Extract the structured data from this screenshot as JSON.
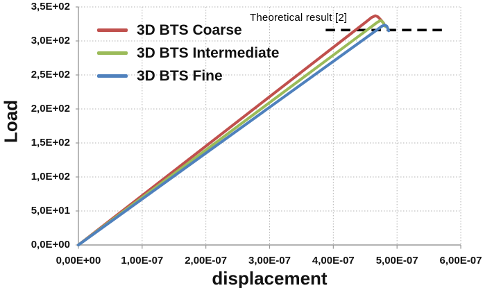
{
  "chart_data": {
    "type": "line",
    "title": "",
    "xlabel": "displacement",
    "ylabel": "Load",
    "xlim": [
      0,
      6e-07
    ],
    "ylim": [
      0,
      350
    ],
    "grid": true,
    "legend_position": "top-left",
    "x_tick_values": [
      0,
      1e-07,
      2e-07,
      3e-07,
      4e-07,
      5e-07,
      6e-07
    ],
    "x_tick_labels": [
      "0,00E+00",
      "1,00E-07",
      "2,00E-07",
      "3,00E-07",
      "4,00E-07",
      "5,00E-07",
      "6,00E-07"
    ],
    "y_tick_values": [
      0,
      50,
      100,
      150,
      200,
      250,
      300,
      350
    ],
    "y_tick_labels": [
      "0,0E+00",
      "5,0E+01",
      "1,0E+02",
      "1,5E+02",
      "2,0E+02",
      "2,5E+02",
      "3,0E+02",
      "3,5E+02"
    ],
    "series": [
      {
        "name": "3D BTS Coarse",
        "color": "#c0504d",
        "points": [
          [
            0,
            0
          ],
          [
            4.5e-07,
            327
          ],
          [
            4.6e-07,
            334.5
          ],
          [
            4.66e-07,
            337
          ],
          [
            4.7e-07,
            335.5
          ],
          [
            4.74e-07,
            331.5
          ],
          [
            4.79e-07,
            326
          ]
        ]
      },
      {
        "name": "3D BTS Intermediate",
        "color": "#9bbb59",
        "points": [
          [
            0,
            0
          ],
          [
            4.6e-07,
            321
          ],
          [
            4.69e-07,
            327.5
          ],
          [
            4.74e-07,
            330
          ],
          [
            4.77e-07,
            328.5
          ],
          [
            4.82e-07,
            321
          ]
        ]
      },
      {
        "name": "3D BTS Fine",
        "color": "#4f81bd",
        "points": [
          [
            0,
            0
          ],
          [
            4.66e-07,
            314.5
          ],
          [
            4.76e-07,
            321.5
          ],
          [
            4.81e-07,
            323.5
          ],
          [
            4.84e-07,
            321.5
          ],
          [
            4.87e-07,
            315
          ]
        ]
      }
    ],
    "annotation": {
      "label": "Theoretical result [2]",
      "value": 316,
      "x_start": 3.88e-07,
      "x_end": 5.75e-07,
      "color": "#000000"
    }
  }
}
